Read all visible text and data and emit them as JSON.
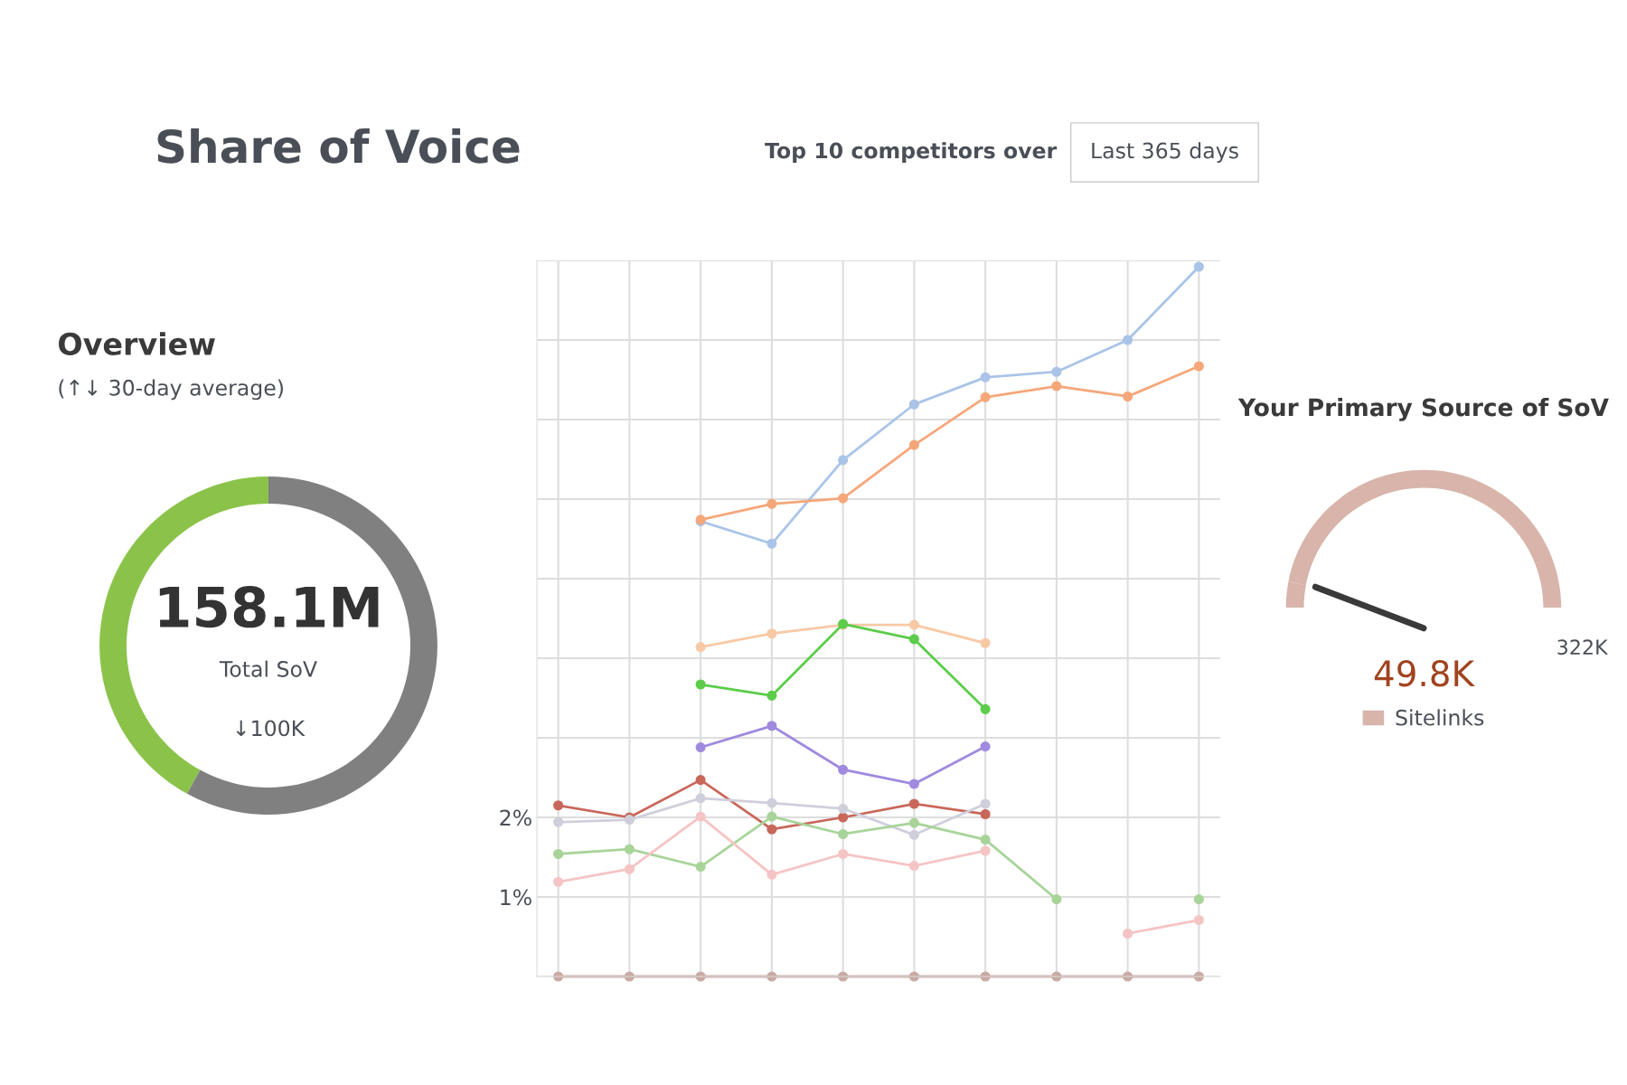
{
  "chart_data": [
    {
      "type": "line",
      "title": "Share of Voice",
      "annotations": [
        "Top 10 competitors over",
        "Last 365 days"
      ],
      "categories": [
        null,
        null,
        null,
        null,
        null,
        null,
        null,
        null,
        null,
        null
      ],
      "series": [
        {
          "color": "#aac4e8",
          "values": [
            null,
            null,
            5.72,
            5.44,
            6.49,
            7.19,
            7.53,
            7.6,
            8.0,
            8.92
          ]
        },
        {
          "color": "#f5a77a",
          "values": [
            null,
            null,
            5.74,
            5.94,
            6.01,
            6.68,
            7.28,
            7.42,
            7.29,
            7.67
          ]
        },
        {
          "color": "#f8c9a5",
          "values": [
            null,
            null,
            4.14,
            4.31,
            4.42,
            4.42,
            4.19,
            null,
            null,
            null
          ]
        },
        {
          "color": "#5ccc4a",
          "values": [
            null,
            null,
            3.67,
            3.53,
            4.43,
            4.24,
            3.36,
            null,
            null,
            null
          ]
        },
        {
          "color": "#a08ae0",
          "values": [
            null,
            null,
            2.88,
            3.15,
            2.6,
            2.42,
            2.89,
            null,
            null,
            null
          ]
        },
        {
          "color": "#c8675a",
          "values": [
            2.15,
            2.0,
            2.47,
            1.85,
            2.0,
            2.17,
            2.04,
            null,
            null,
            null
          ]
        },
        {
          "color": "#cfcfdc",
          "values": [
            1.94,
            1.97,
            2.24,
            2.18,
            2.11,
            1.78,
            2.17,
            null,
            null,
            null
          ]
        },
        {
          "color": "#a8d49a",
          "values": [
            1.54,
            1.6,
            1.38,
            2.01,
            1.79,
            1.93,
            1.72,
            0.97,
            null,
            0.97
          ]
        },
        {
          "color": "#f5c4c4",
          "values": [
            1.19,
            1.35,
            2.01,
            1.28,
            1.54,
            1.39,
            1.58,
            null,
            0.54,
            0.71
          ]
        },
        {
          "color": "#c9aaa4",
          "values": [
            0,
            0,
            0,
            0,
            0,
            0,
            0,
            0,
            0,
            0
          ]
        }
      ],
      "ylim": [
        0,
        9
      ],
      "yticks": [
        {
          "value": 0,
          "label": null
        },
        {
          "value": 1,
          "label": "1%"
        },
        {
          "value": 2,
          "label": "2%"
        },
        {
          "value": 3,
          "label": null
        },
        {
          "value": 4,
          "label": null
        },
        {
          "value": 5,
          "label": null
        },
        {
          "value": 6,
          "label": null
        },
        {
          "value": 7,
          "label": null
        },
        {
          "value": 8,
          "label": null
        },
        {
          "value": 9,
          "label": null
        }
      ],
      "tick_labels": "y",
      "grid": true,
      "marker": "circle",
      "line_style": "solid"
    },
    {
      "type": "donut",
      "title": "Overview",
      "subtitle": "(↑↓ 30-day average)",
      "categories": [
        null,
        null
      ],
      "values": [
        42,
        58
      ],
      "colors": [
        "#8bc34a",
        "#808080"
      ],
      "annotations": [
        "158.1M",
        "Total SoV",
        "↓100K"
      ]
    },
    {
      "type": "donut",
      "title": "Your Primary Source of SoV",
      "categories": [
        "Sitelinks",
        null
      ],
      "values": [
        6,
        94
      ],
      "colors": [
        "#d8b4aa",
        "#d8b4aa"
      ],
      "needle": "Sitelinks",
      "annotations": [
        "49.8K",
        "322K"
      ]
    }
  ]
}
